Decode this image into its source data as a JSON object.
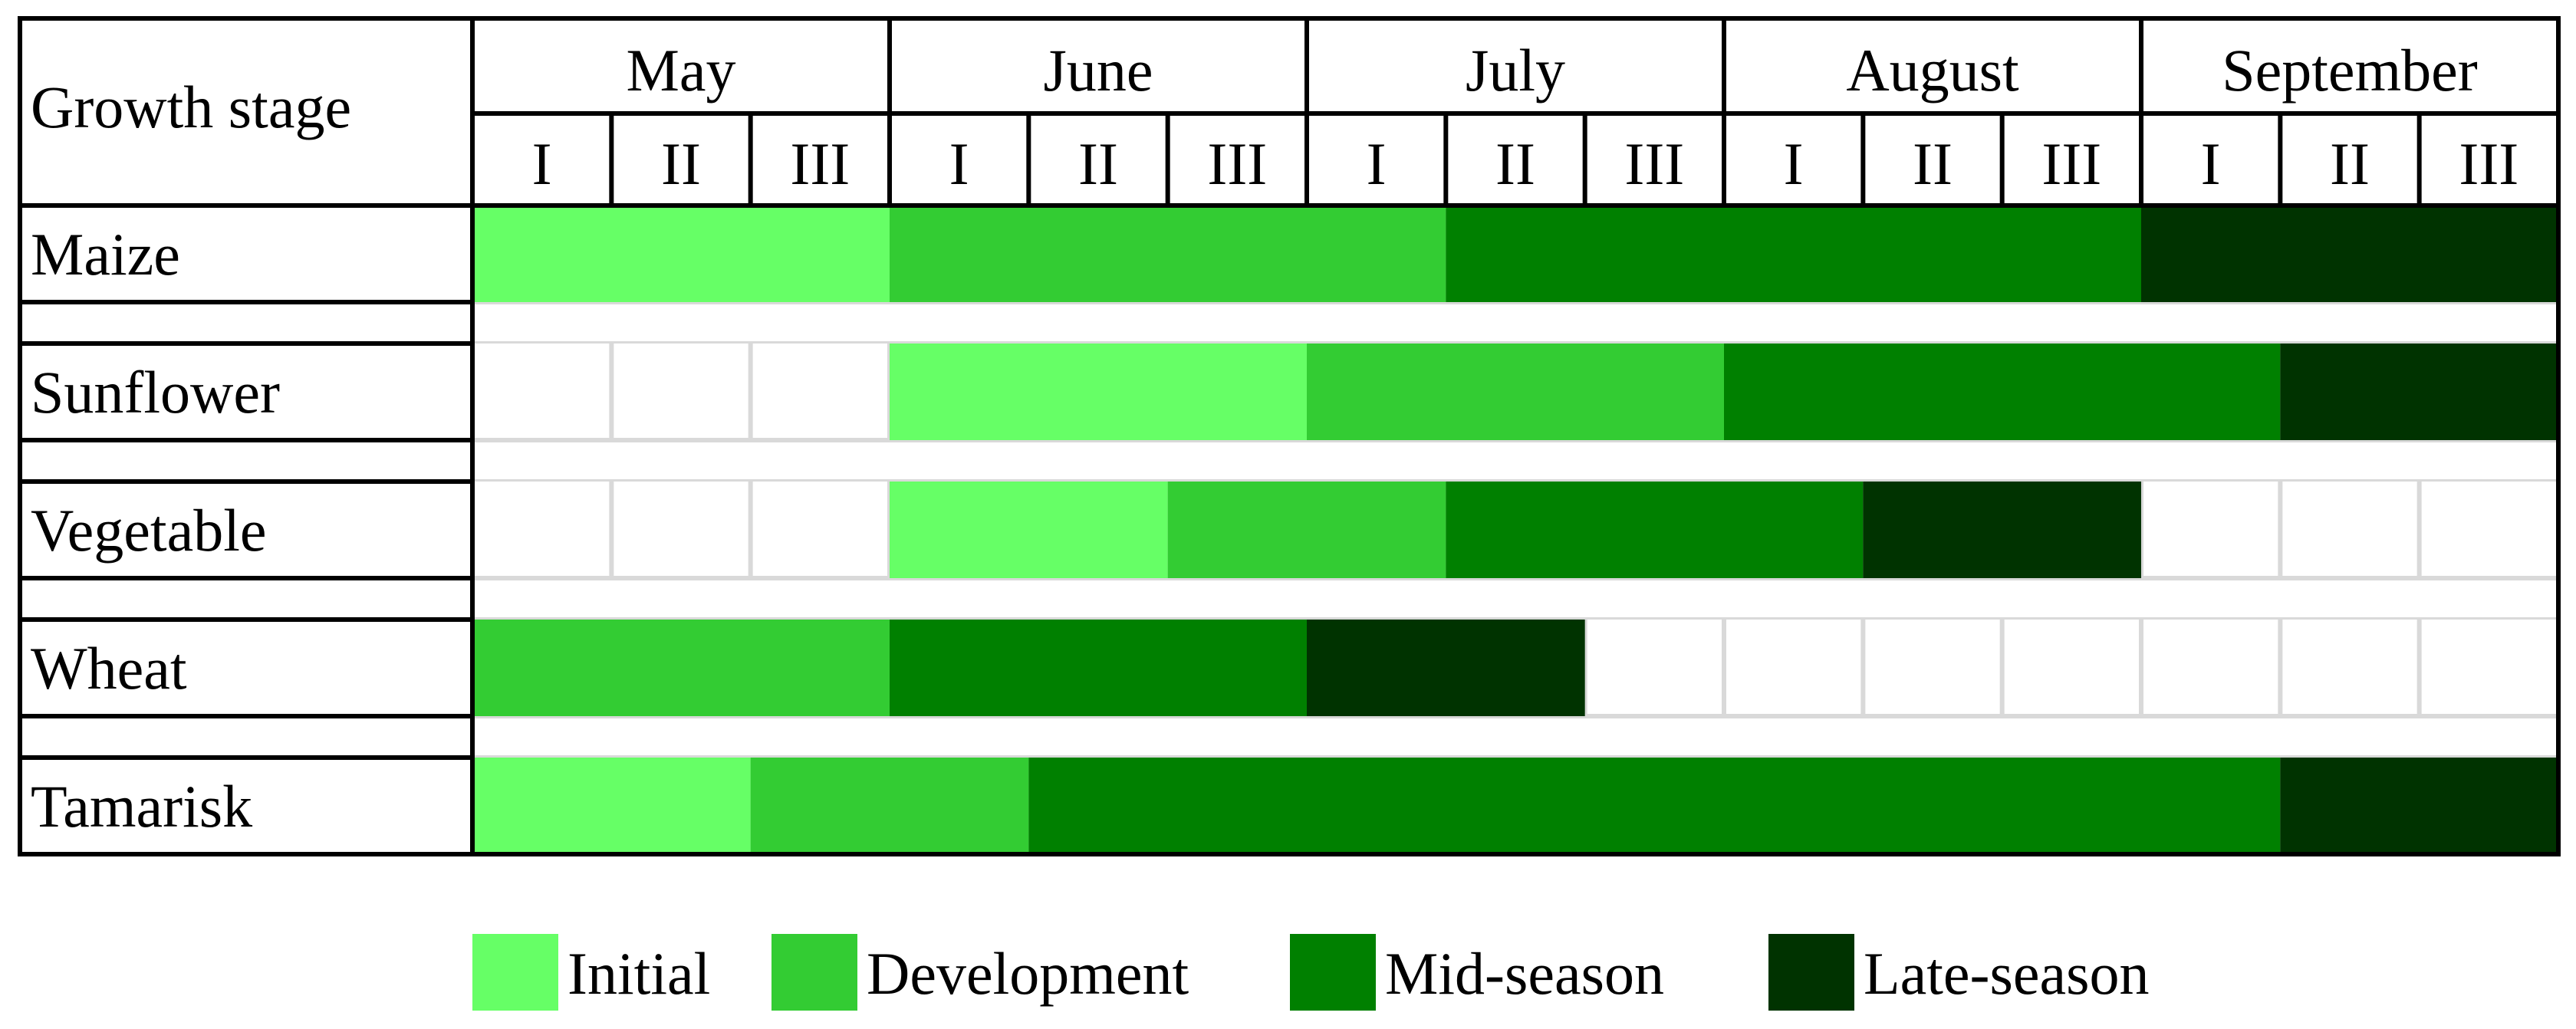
{
  "chart_data": {
    "type": "gantt",
    "corner_label": "Growth stage",
    "months": [
      "May",
      "June",
      "July",
      "August",
      "September"
    ],
    "dekads": [
      "I",
      "II",
      "III"
    ],
    "legend_placement": "bottom",
    "stages": [
      {
        "key": "initial",
        "label": "Initial",
        "color": "#66FF66"
      },
      {
        "key": "development",
        "label": "Development",
        "color": "#33CC33"
      },
      {
        "key": "mid",
        "label": "Mid-season",
        "color": "#008000"
      },
      {
        "key": "late",
        "label": "Late-season",
        "color": "#003300"
      }
    ],
    "crops": [
      {
        "name": "Maize",
        "segments": [
          {
            "stage": "initial",
            "start": 0,
            "end": 3
          },
          {
            "stage": "development",
            "start": 3,
            "end": 7
          },
          {
            "stage": "mid",
            "start": 7,
            "end": 12
          },
          {
            "stage": "late",
            "start": 12,
            "end": 15
          }
        ]
      },
      {
        "name": "Sunflower",
        "segments": [
          {
            "stage": "initial",
            "start": 3,
            "end": 6
          },
          {
            "stage": "development",
            "start": 6,
            "end": 9
          },
          {
            "stage": "mid",
            "start": 9,
            "end": 13
          },
          {
            "stage": "late",
            "start": 13,
            "end": 15
          }
        ]
      },
      {
        "name": "Vegetable",
        "segments": [
          {
            "stage": "initial",
            "start": 3,
            "end": 5
          },
          {
            "stage": "development",
            "start": 5,
            "end": 7
          },
          {
            "stage": "mid",
            "start": 7,
            "end": 10
          },
          {
            "stage": "late",
            "start": 10,
            "end": 12
          }
        ]
      },
      {
        "name": "Wheat",
        "segments": [
          {
            "stage": "development",
            "start": 0,
            "end": 3
          },
          {
            "stage": "mid",
            "start": 3,
            "end": 6
          },
          {
            "stage": "late",
            "start": 6,
            "end": 8
          }
        ]
      },
      {
        "name": "Tamarisk",
        "segments": [
          {
            "stage": "initial",
            "start": 0,
            "end": 2
          },
          {
            "stage": "development",
            "start": 2,
            "end": 4
          },
          {
            "stage": "mid",
            "start": 4,
            "end": 13
          },
          {
            "stage": "late",
            "start": 13,
            "end": 15
          }
        ]
      }
    ]
  }
}
